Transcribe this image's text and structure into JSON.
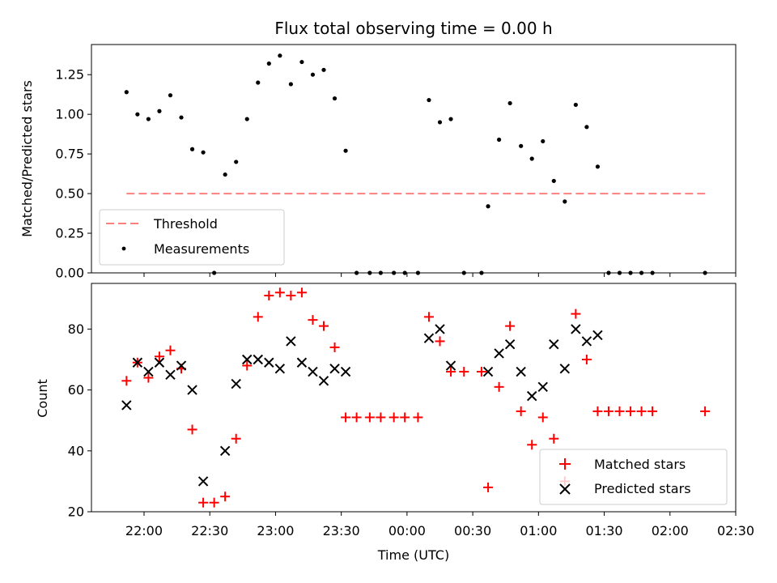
{
  "chart_data": [
    {
      "type": "scatter",
      "title": "Flux total observing time = 0.00 h",
      "ylabel": "Matched/Predicted stars",
      "xlabel": "",
      "ylim": [
        0,
        1.44
      ],
      "yticks": [
        "0.00",
        "0.25",
        "0.50",
        "0.75",
        "1.00",
        "1.25"
      ],
      "xlim_minutes": [
        -24,
        270
      ],
      "threshold": {
        "name": "Threshold",
        "value": 0.5,
        "x_start_min": -8,
        "x_end_min": 256,
        "color": "#ff7f7f"
      },
      "legend": {
        "position": "lower-left",
        "entries": [
          "Threshold",
          "Measurements"
        ]
      },
      "series": [
        {
          "name": "Measurements",
          "color": "#000000",
          "points": [
            [
              -8,
              1.14
            ],
            [
              -3,
              1.0
            ],
            [
              2,
              0.97
            ],
            [
              7,
              1.02
            ],
            [
              12,
              1.12
            ],
            [
              17,
              0.98
            ],
            [
              22,
              0.78
            ],
            [
              27,
              0.76
            ],
            [
              32,
              0.0
            ],
            [
              37,
              0.62
            ],
            [
              42,
              0.7
            ],
            [
              47,
              0.97
            ],
            [
              52,
              1.2
            ],
            [
              57,
              1.32
            ],
            [
              62,
              1.37
            ],
            [
              67,
              1.19
            ],
            [
              72,
              1.33
            ],
            [
              77,
              1.25
            ],
            [
              82,
              1.28
            ],
            [
              87,
              1.1
            ],
            [
              92,
              0.77
            ],
            [
              97,
              0.0
            ],
            [
              103,
              0.0
            ],
            [
              108,
              0.0
            ],
            [
              114,
              0.0
            ],
            [
              119,
              0.0
            ],
            [
              125,
              0.0
            ],
            [
              130,
              1.09
            ],
            [
              135,
              0.95
            ],
            [
              140,
              0.97
            ],
            [
              146,
              0.0
            ],
            [
              154,
              0.0
            ],
            [
              157,
              0.42
            ],
            [
              162,
              0.84
            ],
            [
              167,
              1.07
            ],
            [
              172,
              0.8
            ],
            [
              177,
              0.72
            ],
            [
              182,
              0.83
            ],
            [
              187,
              0.58
            ],
            [
              192,
              0.45
            ],
            [
              197,
              1.06
            ],
            [
              202,
              0.92
            ],
            [
              207,
              0.67
            ],
            [
              212,
              0.0
            ],
            [
              217,
              0.0
            ],
            [
              222,
              0.0
            ],
            [
              227,
              0.0
            ],
            [
              232,
              0.0
            ],
            [
              256,
              0.0
            ]
          ]
        }
      ]
    },
    {
      "type": "scatter",
      "title": "",
      "ylabel": "Count",
      "xlabel": "Time (UTC)",
      "ylim": [
        20,
        95
      ],
      "yticks": [
        "20",
        "40",
        "60",
        "80"
      ],
      "xlim_minutes": [
        -24,
        270
      ],
      "xticks": [
        "22:00",
        "22:30",
        "23:00",
        "23:30",
        "00:00",
        "00:30",
        "01:00",
        "01:30",
        "02:00",
        "02:30"
      ],
      "legend": {
        "position": "lower-right",
        "entries": [
          "Matched stars",
          "Predicted stars"
        ]
      },
      "series": [
        {
          "name": "Matched stars",
          "color": "#ff0000",
          "marker": "plus",
          "points": [
            [
              -8,
              63
            ],
            [
              -3,
              69
            ],
            [
              2,
              64
            ],
            [
              7,
              71
            ],
            [
              12,
              73
            ],
            [
              17,
              67
            ],
            [
              22,
              47
            ],
            [
              27,
              23
            ],
            [
              32,
              23
            ],
            [
              37,
              25
            ],
            [
              42,
              44
            ],
            [
              47,
              68
            ],
            [
              52,
              84
            ],
            [
              57,
              91
            ],
            [
              62,
              92
            ],
            [
              67,
              91
            ],
            [
              72,
              92
            ],
            [
              77,
              83
            ],
            [
              82,
              81
            ],
            [
              87,
              74
            ],
            [
              92,
              51
            ],
            [
              97,
              51
            ],
            [
              103,
              51
            ],
            [
              108,
              51
            ],
            [
              114,
              51
            ],
            [
              119,
              51
            ],
            [
              125,
              51
            ],
            [
              130,
              84
            ],
            [
              135,
              76
            ],
            [
              140,
              66
            ],
            [
              146,
              66
            ],
            [
              154,
              66
            ],
            [
              157,
              28
            ],
            [
              162,
              61
            ],
            [
              167,
              81
            ],
            [
              172,
              53
            ],
            [
              177,
              42
            ],
            [
              182,
              51
            ],
            [
              187,
              44
            ],
            [
              192,
              30
            ],
            [
              197,
              85
            ],
            [
              202,
              70
            ],
            [
              207,
              53
            ],
            [
              212,
              53
            ],
            [
              217,
              53
            ],
            [
              222,
              53
            ],
            [
              227,
              53
            ],
            [
              232,
              53
            ],
            [
              256,
              53
            ]
          ]
        },
        {
          "name": "Predicted stars",
          "color": "#000000",
          "marker": "x",
          "points": [
            [
              -8,
              55
            ],
            [
              -3,
              69
            ],
            [
              2,
              66
            ],
            [
              7,
              69
            ],
            [
              12,
              65
            ],
            [
              17,
              68
            ],
            [
              22,
              60
            ],
            [
              27,
              30
            ],
            [
              37,
              40
            ],
            [
              42,
              62
            ],
            [
              47,
              70
            ],
            [
              52,
              70
            ],
            [
              57,
              69
            ],
            [
              62,
              67
            ],
            [
              67,
              76
            ],
            [
              72,
              69
            ],
            [
              77,
              66
            ],
            [
              82,
              63
            ],
            [
              87,
              67
            ],
            [
              92,
              66
            ],
            [
              130,
              77
            ],
            [
              135,
              80
            ],
            [
              140,
              68
            ],
            [
              157,
              66
            ],
            [
              162,
              72
            ],
            [
              167,
              75
            ],
            [
              172,
              66
            ],
            [
              177,
              58
            ],
            [
              182,
              61
            ],
            [
              187,
              75
            ],
            [
              192,
              67
            ],
            [
              197,
              80
            ],
            [
              202,
              76
            ],
            [
              207,
              78
            ]
          ]
        }
      ]
    }
  ]
}
